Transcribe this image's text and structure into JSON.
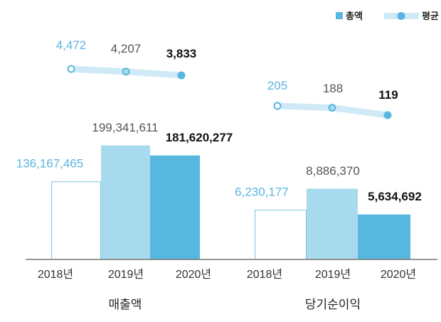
{
  "chart_data": {
    "type": "bar",
    "title": "",
    "legend": {
      "placement": "top-right",
      "items": [
        {
          "label": "총액",
          "kind": "bar"
        },
        {
          "label": "평균",
          "kind": "line"
        }
      ]
    },
    "years": [
      "2018년",
      "2019년",
      "2020년"
    ],
    "groups": [
      {
        "name": "매출액",
        "totals": [
          136167465,
          199341611,
          181620277
        ],
        "total_labels": [
          "136,167,465",
          "199,341,611",
          "181,620,277"
        ],
        "averages": [
          4472,
          4207,
          3833
        ],
        "average_labels": [
          "4,472",
          "4,207",
          "3,833"
        ]
      },
      {
        "name": "당기순이익",
        "totals": [
          6230177,
          8886370,
          5634692
        ],
        "total_labels": [
          "6,230,177",
          "8,886,370",
          "5,634,692"
        ],
        "averages": [
          205,
          188,
          119
        ],
        "average_labels": [
          "205",
          "188",
          "119"
        ]
      }
    ],
    "colors": {
      "year2018_fill": "#ffffff",
      "year2018_stroke": "#7fc3df",
      "year2019": "#a8daee",
      "year2020": "#58b7df",
      "line": "#cfeaf6",
      "label2018": "#5bb5dd",
      "label2019": "#555555",
      "label2020": "#111111",
      "axis": "#777777"
    }
  }
}
